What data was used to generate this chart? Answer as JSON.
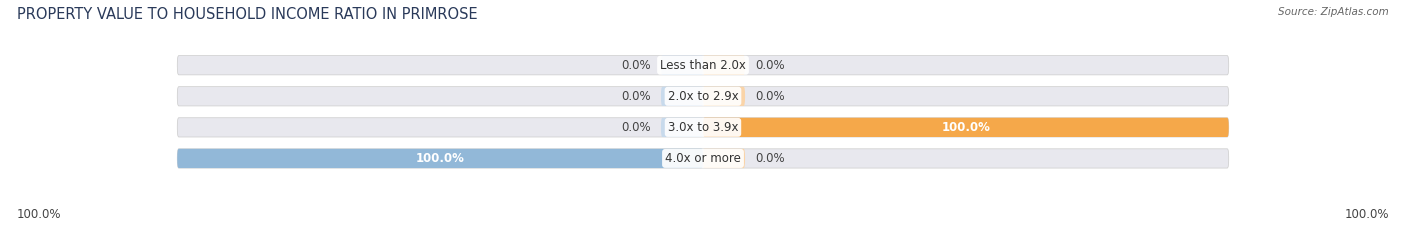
{
  "title": "PROPERTY VALUE TO HOUSEHOLD INCOME RATIO IN PRIMROSE",
  "source": "Source: ZipAtlas.com",
  "categories": [
    "Less than 2.0x",
    "2.0x to 2.9x",
    "3.0x to 3.9x",
    "4.0x or more"
  ],
  "without_mortgage": [
    0.0,
    0.0,
    0.0,
    100.0
  ],
  "with_mortgage": [
    0.0,
    0.0,
    100.0,
    0.0
  ],
  "color_without": "#92b8d8",
  "color_with": "#f5a84a",
  "color_without_light": "#c8daec",
  "color_with_light": "#fad4a8",
  "bar_height": 0.62,
  "bg_color": "#ffffff",
  "bar_bg_color": "#e8e8ee",
  "title_fontsize": 10.5,
  "label_fontsize": 8.5,
  "cat_fontsize": 8.5
}
